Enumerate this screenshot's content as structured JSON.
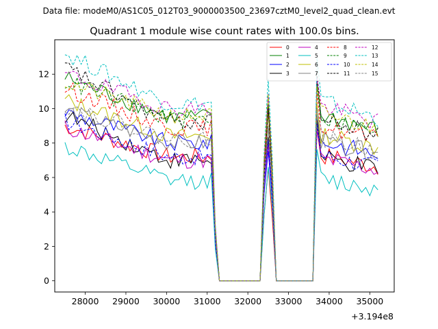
{
  "chart_data": {
    "type": "line",
    "suptitle": "Data file: modeM0/AS1C05_012T03_9000003500_23697cztM0_level2_quad_clean.evt",
    "title": "Quadrant 1 module wise count rates with 100.0s bins.",
    "xlabel": "",
    "ylabel": "",
    "x_offset_label": "+3.194e8",
    "xlim": [
      27250,
      35600
    ],
    "ylim": [
      -0.65,
      14.0
    ],
    "x_ticks": [
      28000,
      29000,
      30000,
      31000,
      32000,
      33000,
      34000,
      35000
    ],
    "x_tick_labels": [
      "28000",
      "29000",
      "30000",
      "31000",
      "32000",
      "33000",
      "34000",
      "35000"
    ],
    "y_ticks": [
      0,
      2,
      4,
      6,
      8,
      10,
      12
    ],
    "y_tick_labels": [
      "0",
      "2",
      "4",
      "6",
      "8",
      "10",
      "12"
    ],
    "segments": [
      {
        "start": 27500,
        "end": 31200,
        "step": 100
      },
      {
        "start": 32300,
        "end": 32700,
        "step": 100
      },
      {
        "start": 33600,
        "end": 35200,
        "step": 100
      }
    ],
    "legend_position": "top-right",
    "series": [
      {
        "name": "0",
        "color": "#ff0000",
        "dash": "solid",
        "level": 7.2,
        "start": 9.0,
        "gap": 6.4
      },
      {
        "name": "1",
        "color": "#008000",
        "dash": "solid",
        "level": 9.5,
        "start": 11.8,
        "gap": 10.0
      },
      {
        "name": "2",
        "color": "#0000ff",
        "dash": "solid",
        "level": 8.0,
        "start": 9.8,
        "gap": 7.8
      },
      {
        "name": "3",
        "color": "#000000",
        "dash": "solid",
        "level": 7.0,
        "start": 9.6,
        "gap": 8.5
      },
      {
        "name": "4",
        "color": "#bf00bf",
        "dash": "solid",
        "level": 7.0,
        "start": 8.9,
        "gap": 8.0
      },
      {
        "name": "5",
        "color": "#00bfbf",
        "dash": "solid",
        "level": 5.8,
        "start": 7.8,
        "gap": 6.6
      },
      {
        "name": "6",
        "color": "#bfbf00",
        "dash": "solid",
        "level": 8.4,
        "start": 10.5,
        "gap": 9.7
      },
      {
        "name": "7",
        "color": "#808080",
        "dash": "solid",
        "level": 8.0,
        "start": 9.9,
        "gap": 8.8
      },
      {
        "name": "8",
        "color": "#ff0000",
        "dash": "dashed",
        "level": 8.9,
        "start": 11.2,
        "gap": 9.8
      },
      {
        "name": "9",
        "color": "#008000",
        "dash": "dashed",
        "level": 9.4,
        "start": 11.6,
        "gap": 10.4
      },
      {
        "name": "10",
        "color": "#0000ff",
        "dash": "dashed",
        "level": 7.2,
        "start": 9.3,
        "gap": 8.3
      },
      {
        "name": "11",
        "color": "#000000",
        "dash": "dashed",
        "level": 9.2,
        "start": 12.4,
        "gap": 10.1
      },
      {
        "name": "12",
        "color": "#bf00bf",
        "dash": "dashed",
        "level": 10.0,
        "start": 12.0,
        "gap": 10.8
      },
      {
        "name": "13",
        "color": "#00bfbf",
        "dash": "dashed",
        "level": 10.3,
        "start": 13.2,
        "gap": 11.6
      },
      {
        "name": "14",
        "color": "#bfbf00",
        "dash": "dashed",
        "level": 9.6,
        "start": 11.5,
        "gap": 10.6
      },
      {
        "name": "15",
        "color": "#808080",
        "dash": "dashed",
        "level": 8.2,
        "start": 10.2,
        "gap": 9.2
      }
    ]
  }
}
